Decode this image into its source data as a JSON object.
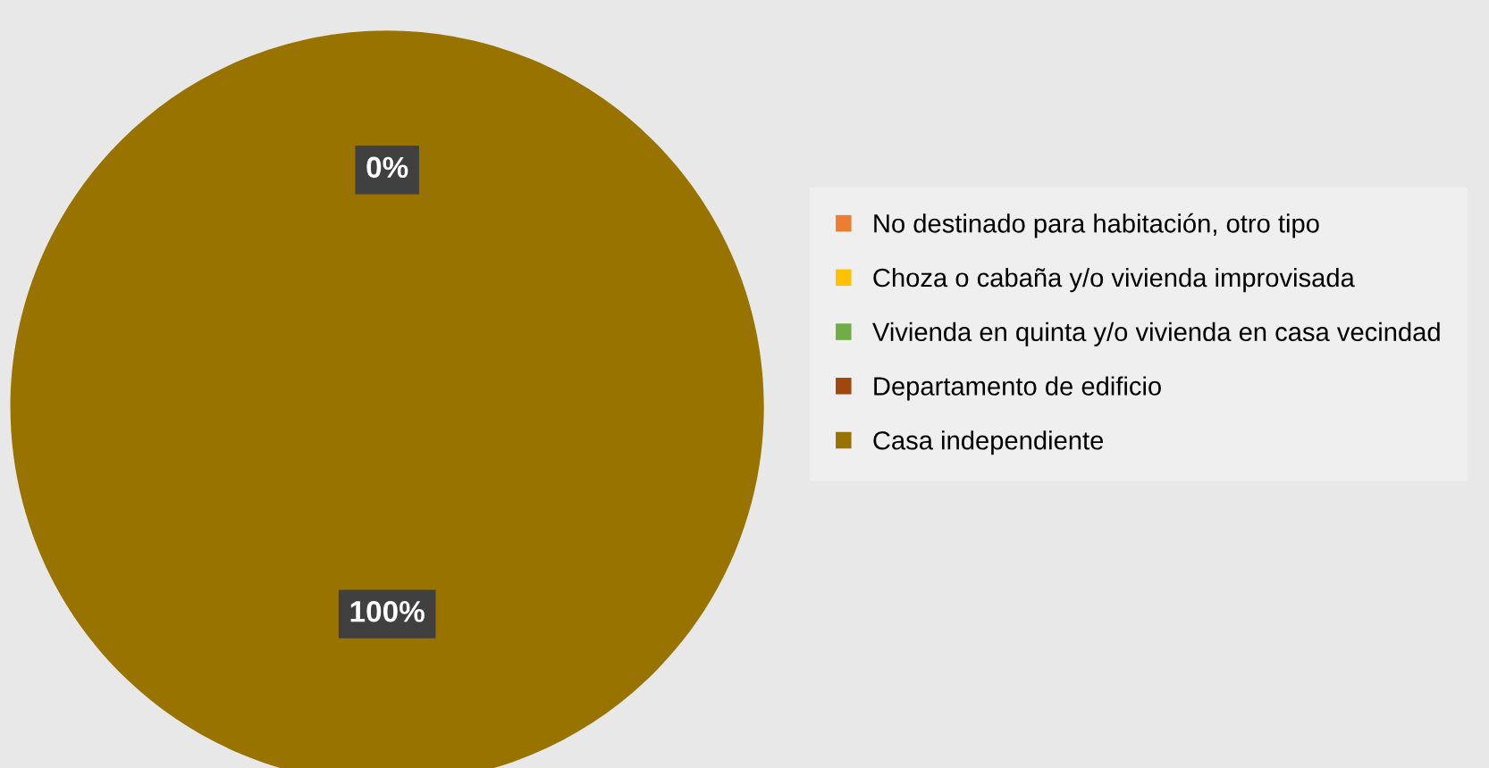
{
  "chart_data": {
    "type": "pie",
    "categories": [
      "No destinado para habitación, otro tipo",
      "Choza o cabaña y/o vivienda improvisada",
      "Vivienda en quinta y/o vivienda en casa vecindad",
      "Departamento de edificio",
      "Casa independiente"
    ],
    "values": [
      0,
      0,
      0,
      0,
      100
    ],
    "colors": [
      "#ed7d31",
      "#ffc000",
      "#70ad47",
      "#9e480e",
      "#997300"
    ],
    "value_labels": [
      "0%",
      null,
      null,
      null,
      "100%"
    ],
    "legend": "right"
  }
}
